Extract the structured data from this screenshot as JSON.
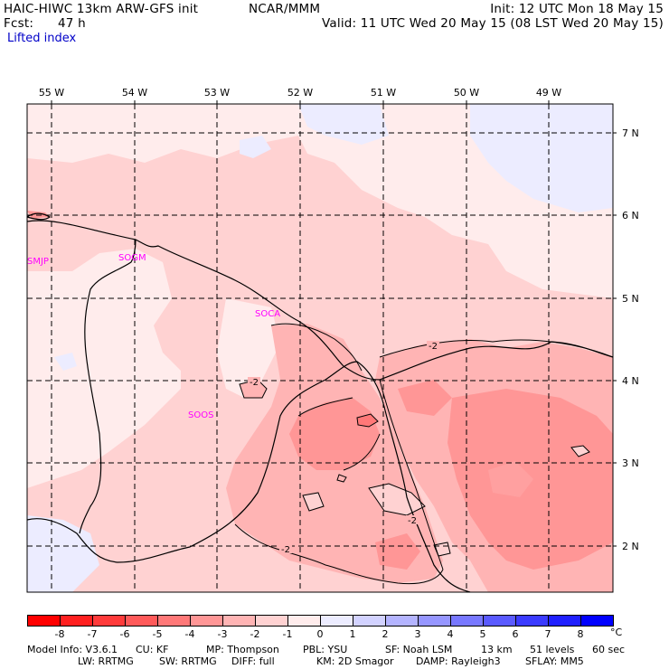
{
  "header": {
    "model": "HAIC-HIWC 13km ARW-GFS init",
    "org": "NCAR/MMM",
    "init": "Init: 12 UTC Mon 18 May 15",
    "fcst_label": "Fcst:",
    "fcst_value": "47 h",
    "valid": "Valid: 11 UTC Wed 20 May 15 (08 LST Wed 20 May 15)",
    "field": "Lifted index"
  },
  "map": {
    "lon_labels": [
      "55 W",
      "54 W",
      "53 W",
      "52 W",
      "51 W",
      "50 W",
      "49 W"
    ],
    "lat_labels": [
      "7 N",
      "6 N",
      "5 N",
      "4 N",
      "3 N",
      "2 N"
    ],
    "stations": [
      "SMJP",
      "SOGM",
      "SOCA",
      "SOOS"
    ],
    "contour_labels": [
      "-2",
      "-2",
      "-2",
      "-2"
    ],
    "station_color": "#ff00ff"
  },
  "colorbar": {
    "ticks": [
      "-8",
      "-7",
      "-6",
      "-5",
      "-4",
      "-3",
      "-2",
      "-1",
      "0",
      "1",
      "2",
      "3",
      "4",
      "5",
      "6",
      "7",
      "8"
    ],
    "unit": "°C",
    "colors": [
      "#ff0000",
      "#ff2020",
      "#ff3b3b",
      "#ff5a5a",
      "#ff7878",
      "#ff9696",
      "#ffb4b4",
      "#ffd2d2",
      "#ffecec",
      "#ececff",
      "#d2d2ff",
      "#b4b4ff",
      "#9696ff",
      "#7878ff",
      "#5a5aff",
      "#3b3bff",
      "#2020ff",
      "#0000ff"
    ]
  },
  "footer": {
    "line1": [
      "Model Info: V3.6.1",
      "CU: KF",
      "MP: Thompson",
      "PBL: YSU",
      "SF: Noah LSM",
      "13 km",
      "51 levels",
      "60 sec"
    ],
    "line2": [
      "LW: RRTMG",
      "SW: RRTMG",
      "DIFF: full",
      "KM: 2D Smagor",
      "DAMP: Rayleigh3",
      "SFLAY: MM5"
    ]
  }
}
